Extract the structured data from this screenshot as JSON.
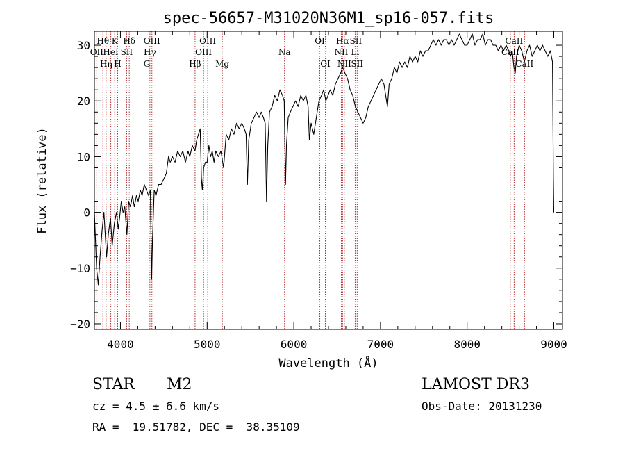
{
  "chart_data": {
    "type": "line",
    "title": "spec-56657-M31020N36M1_sp16-057.fits",
    "xlabel": "Wavelength (Å)",
    "ylabel": "Flux (relative)",
    "xlim": [
      3700,
      9100
    ],
    "ylim": [
      -21,
      32.5
    ],
    "xticks": [
      4000,
      5000,
      6000,
      7000,
      8000,
      9000
    ],
    "yticks": [
      -20,
      -10,
      0,
      10,
      20,
      30
    ],
    "grid": false,
    "series": [
      {
        "color": "#000000",
        "points": [
          [
            3700,
            0
          ],
          [
            3725,
            -10
          ],
          [
            3745,
            -13
          ],
          [
            3765,
            -8
          ],
          [
            3790,
            -3
          ],
          [
            3810,
            0
          ],
          [
            3840,
            -8
          ],
          [
            3860,
            -4
          ],
          [
            3885,
            -1
          ],
          [
            3905,
            -6
          ],
          [
            3930,
            -2
          ],
          [
            3955,
            0
          ],
          [
            3975,
            -3
          ],
          [
            3990,
            -1
          ],
          [
            4010,
            2
          ],
          [
            4030,
            0
          ],
          [
            4050,
            1
          ],
          [
            4075,
            -4
          ],
          [
            4095,
            2
          ],
          [
            4115,
            1
          ],
          [
            4140,
            3
          ],
          [
            4160,
            1
          ],
          [
            4185,
            3
          ],
          [
            4205,
            2
          ],
          [
            4230,
            4
          ],
          [
            4250,
            3
          ],
          [
            4275,
            5
          ],
          [
            4300,
            4
          ],
          [
            4325,
            3
          ],
          [
            4345,
            4
          ],
          [
            4360,
            -12
          ],
          [
            4370,
            -5
          ],
          [
            4390,
            4
          ],
          [
            4410,
            3
          ],
          [
            4440,
            5
          ],
          [
            4470,
            5
          ],
          [
            4500,
            6
          ],
          [
            4530,
            7
          ],
          [
            4555,
            10
          ],
          [
            4575,
            9
          ],
          [
            4600,
            10
          ],
          [
            4630,
            9
          ],
          [
            4660,
            11
          ],
          [
            4690,
            10
          ],
          [
            4720,
            11
          ],
          [
            4750,
            9
          ],
          [
            4780,
            11
          ],
          [
            4800,
            10
          ],
          [
            4830,
            12
          ],
          [
            4860,
            11
          ],
          [
            4880,
            13
          ],
          [
            4900,
            14
          ],
          [
            4920,
            15
          ],
          [
            4935,
            6
          ],
          [
            4945,
            4
          ],
          [
            4960,
            8
          ],
          [
            4980,
            9
          ],
          [
            5000,
            9
          ],
          [
            5020,
            12
          ],
          [
            5040,
            10
          ],
          [
            5060,
            11
          ],
          [
            5080,
            9
          ],
          [
            5100,
            11
          ],
          [
            5130,
            10
          ],
          [
            5160,
            11
          ],
          [
            5190,
            8
          ],
          [
            5220,
            14
          ],
          [
            5250,
            13
          ],
          [
            5280,
            15
          ],
          [
            5310,
            14
          ],
          [
            5340,
            16
          ],
          [
            5370,
            15
          ],
          [
            5400,
            16
          ],
          [
            5430,
            15
          ],
          [
            5450,
            14
          ],
          [
            5465,
            5
          ],
          [
            5480,
            13
          ],
          [
            5510,
            16
          ],
          [
            5540,
            17
          ],
          [
            5570,
            18
          ],
          [
            5600,
            17
          ],
          [
            5625,
            18
          ],
          [
            5650,
            17
          ],
          [
            5670,
            16
          ],
          [
            5685,
            2
          ],
          [
            5700,
            12
          ],
          [
            5720,
            18
          ],
          [
            5750,
            19
          ],
          [
            5780,
            21
          ],
          [
            5810,
            20
          ],
          [
            5840,
            22
          ],
          [
            5870,
            21
          ],
          [
            5890,
            20
          ],
          [
            5905,
            5
          ],
          [
            5915,
            12
          ],
          [
            5935,
            17
          ],
          [
            5960,
            18
          ],
          [
            5990,
            19
          ],
          [
            6020,
            20
          ],
          [
            6050,
            19
          ],
          [
            6080,
            21
          ],
          [
            6110,
            20
          ],
          [
            6140,
            21
          ],
          [
            6165,
            19
          ],
          [
            6180,
            13
          ],
          [
            6200,
            16
          ],
          [
            6230,
            14
          ],
          [
            6260,
            17
          ],
          [
            6290,
            20
          ],
          [
            6320,
            21
          ],
          [
            6345,
            22
          ],
          [
            6370,
            20
          ],
          [
            6395,
            21
          ],
          [
            6420,
            22
          ],
          [
            6450,
            21
          ],
          [
            6480,
            23
          ],
          [
            6510,
            24
          ],
          [
            6540,
            25
          ],
          [
            6565,
            26
          ],
          [
            6590,
            25
          ],
          [
            6620,
            24
          ],
          [
            6650,
            22
          ],
          [
            6680,
            21
          ],
          [
            6710,
            19
          ],
          [
            6740,
            18
          ],
          [
            6770,
            17
          ],
          [
            6800,
            16
          ],
          [
            6830,
            17
          ],
          [
            6860,
            19
          ],
          [
            6890,
            20
          ],
          [
            6920,
            21
          ],
          [
            6950,
            22
          ],
          [
            6980,
            23
          ],
          [
            7010,
            24
          ],
          [
            7040,
            23
          ],
          [
            7060,
            21
          ],
          [
            7080,
            19
          ],
          [
            7100,
            23
          ],
          [
            7130,
            24
          ],
          [
            7160,
            26
          ],
          [
            7190,
            25
          ],
          [
            7220,
            27
          ],
          [
            7250,
            26
          ],
          [
            7280,
            27
          ],
          [
            7310,
            26
          ],
          [
            7340,
            28
          ],
          [
            7370,
            27
          ],
          [
            7400,
            28
          ],
          [
            7430,
            27
          ],
          [
            7460,
            29
          ],
          [
            7490,
            28
          ],
          [
            7520,
            29
          ],
          [
            7550,
            29
          ],
          [
            7580,
            30
          ],
          [
            7610,
            31
          ],
          [
            7640,
            30
          ],
          [
            7670,
            31
          ],
          [
            7700,
            30
          ],
          [
            7730,
            31
          ],
          [
            7760,
            31
          ],
          [
            7790,
            30
          ],
          [
            7820,
            31
          ],
          [
            7850,
            30
          ],
          [
            7880,
            31
          ],
          [
            7910,
            32
          ],
          [
            7940,
            31
          ],
          [
            7970,
            30
          ],
          [
            8000,
            30
          ],
          [
            8030,
            31
          ],
          [
            8060,
            32
          ],
          [
            8090,
            30
          ],
          [
            8120,
            31
          ],
          [
            8150,
            31
          ],
          [
            8180,
            32
          ],
          [
            8210,
            30
          ],
          [
            8240,
            31
          ],
          [
            8270,
            31
          ],
          [
            8300,
            30
          ],
          [
            8330,
            30
          ],
          [
            8360,
            29
          ],
          [
            8390,
            30
          ],
          [
            8420,
            29
          ],
          [
            8450,
            30
          ],
          [
            8480,
            29
          ],
          [
            8500,
            28
          ],
          [
            8520,
            29
          ],
          [
            8540,
            26
          ],
          [
            8555,
            25
          ],
          [
            8570,
            28
          ],
          [
            8600,
            30
          ],
          [
            8630,
            29
          ],
          [
            8660,
            27
          ],
          [
            8690,
            29
          ],
          [
            8720,
            30
          ],
          [
            8750,
            28
          ],
          [
            8780,
            29
          ],
          [
            8810,
            30
          ],
          [
            8840,
            29
          ],
          [
            8870,
            30
          ],
          [
            8900,
            29
          ],
          [
            8930,
            28
          ],
          [
            8960,
            29
          ],
          [
            8985,
            27
          ],
          [
            8995,
            6
          ],
          [
            9000,
            0
          ]
        ]
      }
    ],
    "lines": [
      {
        "label": "OII",
        "x": 3727,
        "row": 1
      },
      {
        "label": "Hθ",
        "x": 3798,
        "row": 0
      },
      {
        "label": "Hη",
        "x": 3835,
        "row": 2
      },
      {
        "label": "HeI",
        "x": 3889,
        "row": 1
      },
      {
        "label": "K",
        "x": 3934,
        "row": 0
      },
      {
        "label": "H",
        "x": 3968,
        "row": 2
      },
      {
        "label": "Hδ",
        "x": 4102,
        "row": 0
      },
      {
        "label": "SII",
        "x": 4072,
        "row": 1
      },
      {
        "label": "G",
        "x": 4305,
        "row": 2
      },
      {
        "label": "OIII",
        "x": 4363,
        "row": 0
      },
      {
        "label": "Hγ",
        "x": 4340,
        "row": 1
      },
      {
        "label": "Hβ",
        "x": 4861,
        "row": 2
      },
      {
        "label": "OIII",
        "x": 4959,
        "row": 1
      },
      {
        "label": "OIII",
        "x": 5007,
        "row": 0
      },
      {
        "label": "Mg",
        "x": 5175,
        "row": 2
      },
      {
        "label": "Na",
        "x": 5893,
        "row": 1
      },
      {
        "label": "OI",
        "x": 6300,
        "row": 0
      },
      {
        "label": "OI",
        "x": 6364,
        "row": 2
      },
      {
        "label": "NII",
        "x": 6548,
        "row": 1
      },
      {
        "label": "Hα",
        "x": 6563,
        "row": 0
      },
      {
        "label": "NII",
        "x": 6583,
        "row": 2
      },
      {
        "label": "Li",
        "x": 6708,
        "row": 1
      },
      {
        "label": "SII",
        "x": 6716,
        "row": 0
      },
      {
        "label": "SII",
        "x": 6731,
        "row": 2
      },
      {
        "label": "CaII",
        "x": 8498,
        "row": 1
      },
      {
        "label": "CaII",
        "x": 8542,
        "row": 0
      },
      {
        "label": "CaII",
        "x": 8662,
        "row": 2
      }
    ]
  },
  "info": {
    "class_label": "STAR",
    "subclass_label": "M2",
    "cz": "cz = 4.5 ± 6.6 km/s",
    "radec": "RA =  19.51782, DEC =  38.35109",
    "survey": "LAMOST DR3",
    "obs_date": "Obs-Date: 20131230"
  }
}
